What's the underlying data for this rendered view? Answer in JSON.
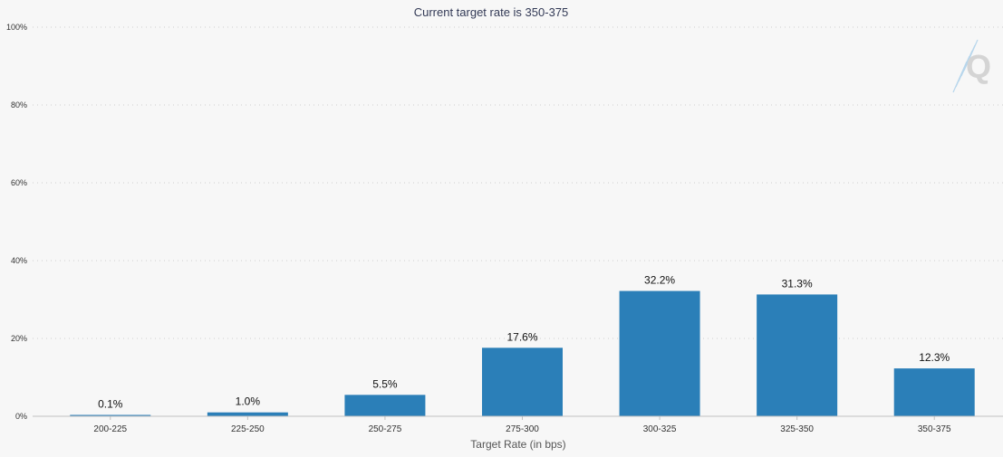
{
  "chart_data": {
    "type": "bar",
    "title": "Current target rate is 350-375",
    "xlabel": "Target Rate (in bps)",
    "ylabel": "",
    "categories": [
      "200-225",
      "225-250",
      "250-275",
      "275-300",
      "300-325",
      "325-350",
      "350-375"
    ],
    "values": [
      0.1,
      1.0,
      5.5,
      17.6,
      32.2,
      31.3,
      12.3
    ],
    "data_labels": [
      "0.1%",
      "1.0%",
      "5.5%",
      "17.6%",
      "32.2%",
      "31.3%",
      "12.3%"
    ],
    "ylim": [
      0,
      100
    ],
    "yticks": [
      {
        "value": 0,
        "label": "0%"
      },
      {
        "value": 20,
        "label": "20%"
      },
      {
        "value": 40,
        "label": "40%"
      },
      {
        "value": 60,
        "label": "60%"
      },
      {
        "value": 80,
        "label": "80%"
      },
      {
        "value": 100,
        "label": "100%"
      }
    ],
    "grid": true,
    "bar_color": "#2b7fb8"
  },
  "watermark": {
    "icon": "q-logo-icon"
  }
}
